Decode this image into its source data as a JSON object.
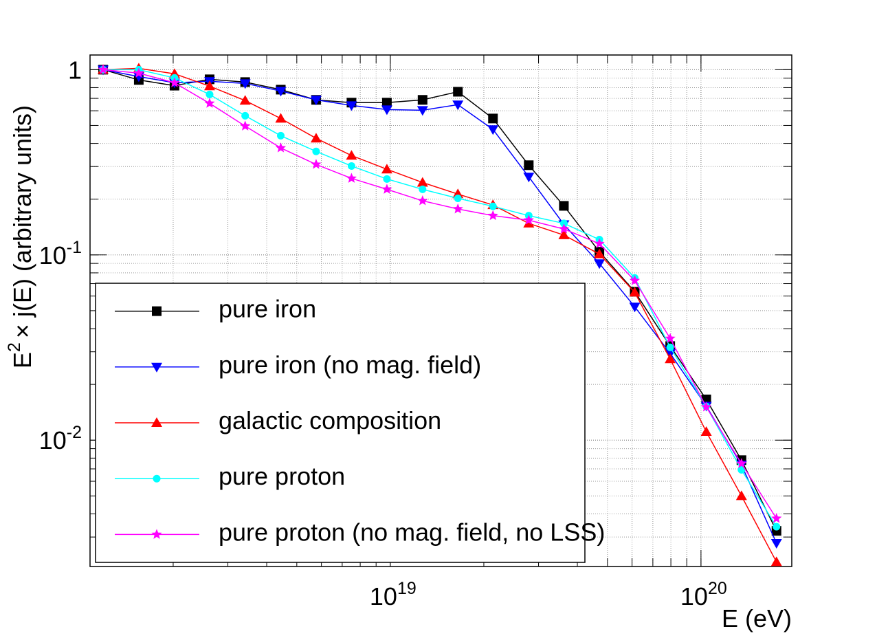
{
  "chart_data": {
    "type": "line",
    "x_label": "E (eV)",
    "y_label": {
      "base": "E",
      "exponent": "2",
      "rest": "× j(E) (arbitrary units)"
    },
    "x": [
      1.19e+18,
      1.55e+18,
      2.02e+18,
      2.62e+18,
      3.41e+18,
      4.44e+18,
      5.77e+18,
      7.5e+18,
      9.75e+18,
      1.27e+19,
      1.65e+19,
      2.14e+19,
      2.79e+19,
      3.62e+19,
      4.71e+19,
      6.12e+19,
      7.96e+19,
      1.04e+20,
      1.35e+20,
      1.75e+20
    ],
    "series": [
      {
        "name": "pure iron",
        "color": "#000000",
        "marker": "square",
        "values": [
          1,
          0.88,
          0.82,
          0.887,
          0.857,
          0.78,
          0.687,
          0.664,
          0.664,
          0.687,
          0.76,
          0.545,
          0.305,
          0.184,
          0.104,
          0.0633,
          0.0322,
          0.0166,
          0.0078,
          0.00324
        ]
      },
      {
        "name": "pure iron (no mag. field)",
        "color": "#0000ff",
        "marker": "triangle-down",
        "values": [
          1,
          0.918,
          0.85,
          0.865,
          0.843,
          0.767,
          0.687,
          0.641,
          0.609,
          0.604,
          0.647,
          0.476,
          0.264,
          0.146,
          0.0899,
          0.0525,
          0.0294,
          0.0153,
          0.00735,
          0.00278
        ]
      },
      {
        "name": "galactic composition",
        "color": "#ff0000",
        "marker": "triangle-up",
        "values": [
          1,
          1.017,
          0.95,
          0.815,
          0.681,
          0.545,
          0.426,
          0.344,
          0.29,
          0.246,
          0.213,
          0.186,
          0.148,
          0.128,
          0.101,
          0.0628,
          0.0274,
          0.0111,
          0.005,
          0.0022
        ]
      },
      {
        "name": "pure proton",
        "color": "#00ffff",
        "marker": "circle",
        "values": [
          1,
          1,
          0.903,
          0.735,
          0.564,
          0.44,
          0.362,
          0.302,
          0.257,
          0.226,
          0.202,
          0.183,
          0.163,
          0.148,
          0.121,
          0.0751,
          0.0317,
          0.0152,
          0.00692,
          0.00341
        ]
      },
      {
        "name": "pure proton (no mag. field, no LSS)",
        "color": "#ff00ff",
        "marker": "star",
        "values": [
          1,
          0.958,
          0.85,
          0.658,
          0.496,
          0.378,
          0.308,
          0.259,
          0.226,
          0.196,
          0.177,
          0.163,
          0.154,
          0.138,
          0.115,
          0.0726,
          0.0354,
          0.0151,
          0.00748,
          0.00378
        ]
      }
    ],
    "xlim": [
      1.08e+18,
      1.96e+20
    ],
    "ylim": [
      0.00208,
      1.2
    ],
    "xticks": [
      {
        "value": 1e+19,
        "label": "10",
        "exponent": "19"
      },
      {
        "value": 1e+20,
        "label": "10",
        "exponent": "20"
      }
    ],
    "yticks": [
      {
        "value": 0.01,
        "label": "10",
        "exponent": "-2"
      },
      {
        "value": 0.1,
        "label": "10",
        "exponent": "-1"
      },
      1
    ],
    "log_x": true,
    "log_y": true,
    "grid": true,
    "legend": "lower left"
  }
}
